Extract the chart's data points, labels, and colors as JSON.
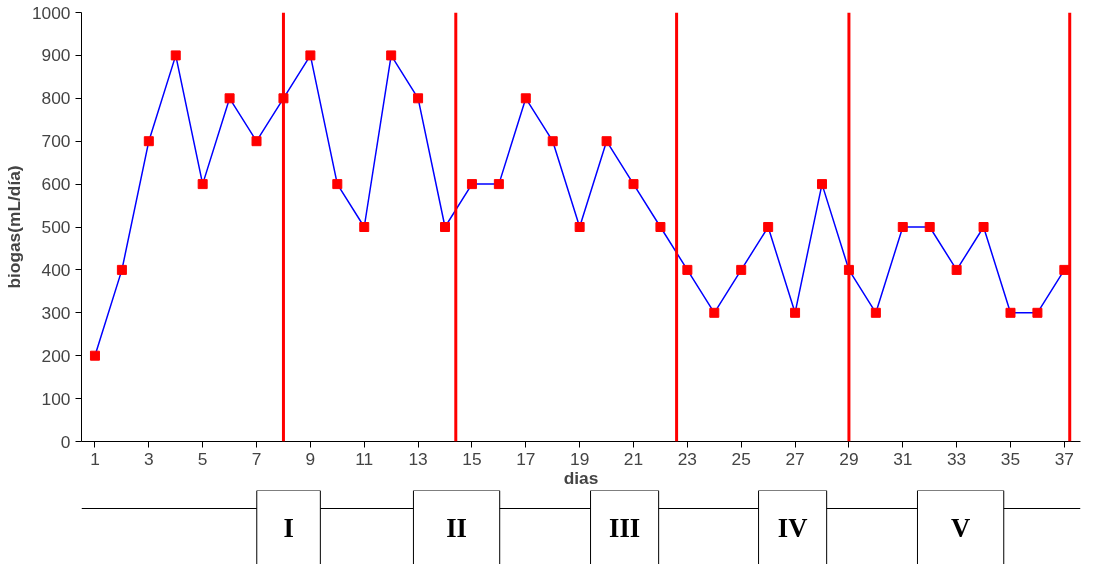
{
  "chart_data": {
    "type": "line",
    "xlabel": "dias",
    "ylabel": "biogas(mL/día)",
    "x": [
      1,
      2,
      3,
      4,
      5,
      6,
      7,
      8,
      9,
      10,
      11,
      12,
      13,
      14,
      15,
      16,
      17,
      18,
      19,
      20,
      21,
      22,
      23,
      24,
      25,
      26,
      27,
      28,
      29,
      30,
      31,
      32,
      33,
      34,
      35,
      36,
      37
    ],
    "series": [
      {
        "color": "#0000ff",
        "colors": [
          "#ff0000",
          "#ff0000",
          "#ff0000",
          "#ff0000",
          "#ff0000",
          "#ff0000",
          "#ff0000",
          "#ff0000",
          "#ff0000",
          "#ff0000",
          "#ff0000",
          "#ff0000",
          "#ff0000",
          "#ff0000",
          "#ff0000",
          "#ff0000",
          "#ff0000",
          "#ff0000",
          "#ff0000",
          "#ff0000",
          "#ff0000",
          "#ff0000",
          "#ff0000",
          "#ff0000",
          "#ff0000",
          "#ff0000",
          "#ff0000",
          "#ff0000",
          "#ff0000",
          "#ff0000",
          "#ff0000",
          "#ff0000",
          "#ff0000",
          "#ff0000",
          "#ff0000",
          "#ff0000",
          "#ff0000"
        ],
        "values": [
          200,
          400,
          700,
          900,
          600,
          800,
          700,
          800,
          900,
          600,
          500,
          900,
          800,
          500,
          600,
          600,
          800,
          700,
          500,
          700,
          600,
          500,
          400,
          300,
          400,
          500,
          300,
          600,
          400,
          300,
          500,
          500,
          400,
          500,
          300,
          300,
          400
        ]
      }
    ],
    "xlim": [
      0.5,
      37.6
    ],
    "xticks": [
      1,
      3,
      5,
      7,
      9,
      11,
      13,
      15,
      17,
      19,
      21,
      23,
      25,
      27,
      29,
      31,
      33,
      35,
      37
    ],
    "ylim": [
      0,
      1000
    ],
    "yticks": [
      0,
      100,
      200,
      300,
      400,
      500,
      600,
      700,
      800,
      900,
      1000
    ],
    "marker": "square",
    "line_style": "solid",
    "grid": false,
    "ref_lines": [
      {
        "axis": "x",
        "value": 8,
        "color": "#ff0000"
      },
      {
        "axis": "x",
        "value": 14.4,
        "color": "#ff0000"
      },
      {
        "axis": "x",
        "value": 22.6,
        "color": "#ff0000"
      },
      {
        "axis": "x",
        "value": 29,
        "color": "#ff0000"
      },
      {
        "axis": "x",
        "value": 37.2,
        "color": "#ff0000"
      }
    ],
    "annotations": [
      "I",
      "II",
      "III",
      "IV",
      "V"
    ]
  }
}
